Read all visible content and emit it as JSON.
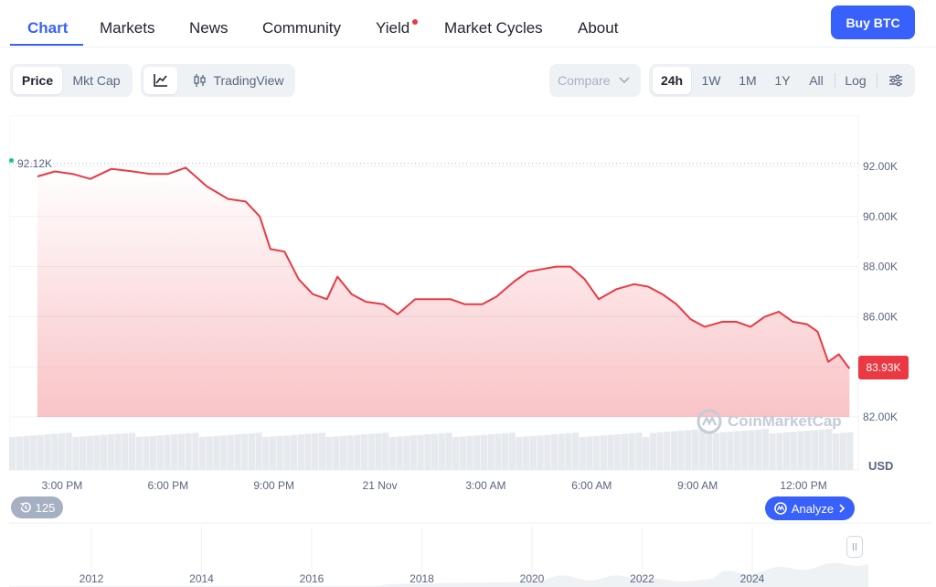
{
  "nav": {
    "tabs": [
      {
        "label": "Chart",
        "active": true
      },
      {
        "label": "Markets"
      },
      {
        "label": "News"
      },
      {
        "label": "Community"
      },
      {
        "label": "Yield",
        "badge_dot": true
      },
      {
        "label": "Market Cycles"
      },
      {
        "label": "About"
      }
    ],
    "buy_label": "Buy BTC"
  },
  "toolbar": {
    "metric": [
      "Price",
      "Mkt Cap"
    ],
    "metric_selected": "Price",
    "chart_mode_icon": "line-chart-icon",
    "tradingview_label": "TradingView",
    "compare_label": "Compare",
    "ranges": [
      "24h",
      "1W",
      "1M",
      "1Y",
      "All"
    ],
    "range_selected": "24h",
    "log_label": "Log",
    "settings_icon": "sliders-icon"
  },
  "chart": {
    "high_label": "92.12K",
    "current_price_label": "83.93K",
    "currency_label": "USD",
    "watermark": "CoinMarketCap",
    "history_badge": "125",
    "analyze_label": "Analyze",
    "line_color": "#ea3943",
    "accent_color": "#3861fb"
  },
  "chart_data": {
    "type": "line",
    "y_ticks": [
      "92.00K",
      "90.00K",
      "88.00K",
      "86.00K",
      "84.00K",
      "82.00K"
    ],
    "ylim": [
      82000,
      92500
    ],
    "x_ticks": [
      "3:00 PM",
      "6:00 PM",
      "9:00 PM",
      "21 Nov",
      "3:00 AM",
      "6:00 AM",
      "9:00 AM",
      "12:00 PM"
    ],
    "x_hours": [
      1.5,
      4.5,
      7.5,
      10.5,
      13.5,
      16.5,
      19.5,
      22.5
    ],
    "series": [
      {
        "x": [
          0.8,
          1.3,
          1.8,
          2.3,
          2.9,
          3.5,
          4.0,
          4.5,
          5.0,
          5.6,
          6.2,
          6.7,
          7.1,
          7.4,
          7.8,
          8.2,
          8.6,
          9.0,
          9.3,
          9.7,
          10.1,
          10.6,
          11.0,
          11.5,
          12.0,
          12.5,
          12.9,
          13.4,
          13.8,
          14.3,
          14.7,
          15.1,
          15.5,
          15.9,
          16.3,
          16.7,
          17.2,
          17.7,
          18.1,
          18.5,
          18.9,
          19.3,
          19.7,
          20.2,
          20.6,
          21.0,
          21.4,
          21.8,
          22.2,
          22.6,
          22.9,
          23.2,
          23.5,
          23.8
        ],
        "values": [
          91600,
          91800,
          91700,
          91500,
          91900,
          91800,
          91700,
          91700,
          91950,
          91200,
          90700,
          90600,
          90000,
          88700,
          88600,
          87500,
          86900,
          86700,
          87600,
          86900,
          86600,
          86500,
          86100,
          86700,
          86700,
          86700,
          86500,
          86500,
          86800,
          87400,
          87800,
          87900,
          88000,
          88000,
          87500,
          86700,
          87100,
          87300,
          87200,
          86900,
          86500,
          85900,
          85600,
          85800,
          85800,
          85600,
          86000,
          86200,
          85800,
          85700,
          85400,
          84200,
          84500,
          83930
        ]
      }
    ],
    "volume_visible": true,
    "navigator_x_ticks": [
      "2012",
      "2014",
      "2016",
      "2018",
      "2020",
      "2022",
      "2024"
    ]
  }
}
